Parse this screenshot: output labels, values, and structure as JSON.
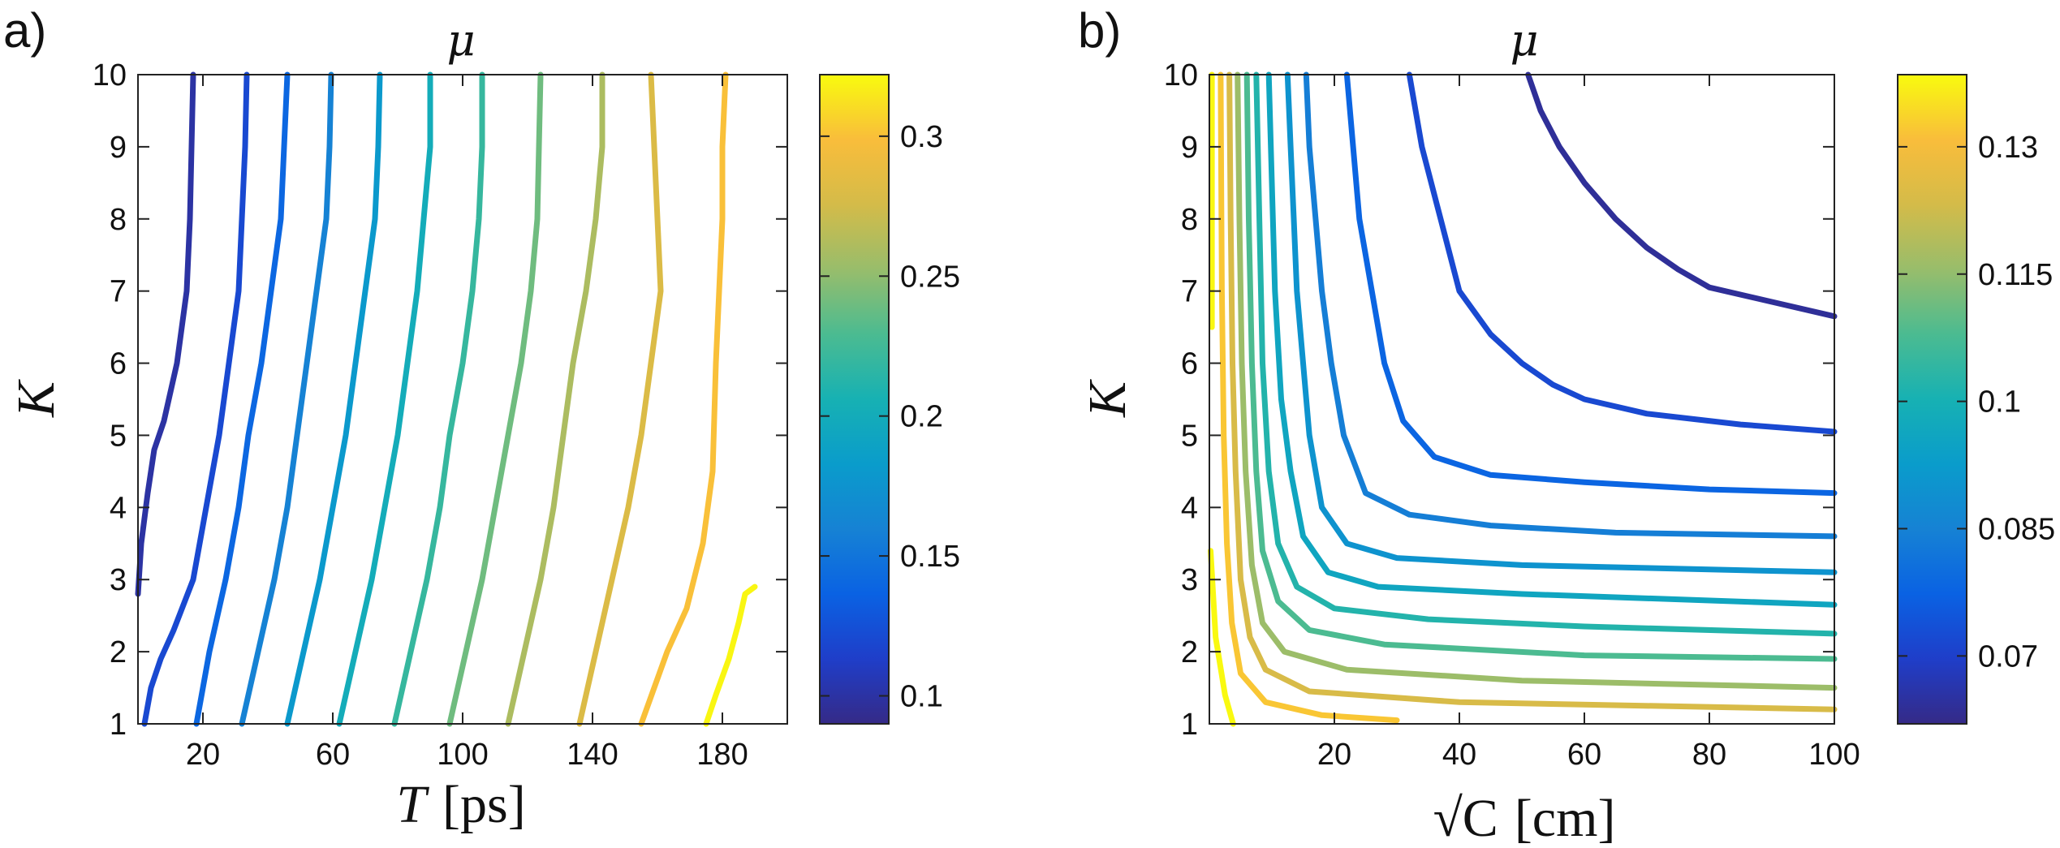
{
  "chart_data": [
    {
      "type": "contour",
      "panel_label": "a)",
      "title": "μ",
      "xlabel_var": "T",
      "xlabel_unit": "[ps]",
      "ylabel": "K",
      "xlim": [
        0,
        200
      ],
      "ylim": [
        1,
        10
      ],
      "xticks": [
        20,
        60,
        100,
        140,
        180
      ],
      "yticks": [
        1,
        2,
        3,
        4,
        5,
        6,
        7,
        8,
        9,
        10
      ],
      "colorbar": {
        "range": [
          0.09,
          0.322
        ],
        "ticks": [
          0.1,
          0.15,
          0.2,
          0.25,
          0.3
        ],
        "tick_labels": [
          "0.1",
          "0.15",
          "0.2",
          "0.25",
          "0.3"
        ]
      },
      "levels": [
        {
          "level": 0.1,
          "points": [
            [
              0,
              2.8
            ],
            [
              1,
              3.5
            ],
            [
              3,
              4.2
            ],
            [
              5,
              4.8
            ],
            [
              8,
              5.2
            ],
            [
              12,
              6.0
            ],
            [
              15,
              7.0
            ],
            [
              16,
              8.0
            ],
            [
              16.5,
              9.0
            ],
            [
              17,
              10.0
            ]
          ]
        },
        {
          "level": 0.12,
          "points": [
            [
              2,
              1.0
            ],
            [
              4,
              1.5
            ],
            [
              7,
              1.9
            ],
            [
              11,
              2.3
            ],
            [
              17,
              3.0
            ],
            [
              21,
              4.0
            ],
            [
              25,
              5.0
            ],
            [
              28,
              6.0
            ],
            [
              31,
              7.0
            ],
            [
              32,
              8.0
            ],
            [
              33,
              9.0
            ],
            [
              33.5,
              10.0
            ]
          ]
        },
        {
          "level": 0.14,
          "points": [
            [
              18,
              1.0
            ],
            [
              22,
              2.0
            ],
            [
              27,
              3.0
            ],
            [
              31,
              4.0
            ],
            [
              34,
              5.0
            ],
            [
              38,
              6.0
            ],
            [
              41,
              7.0
            ],
            [
              44,
              8.0
            ],
            [
              45,
              9.0
            ],
            [
              46,
              10.0
            ]
          ]
        },
        {
          "level": 0.16,
          "points": [
            [
              32,
              1.0
            ],
            [
              37,
              2.0
            ],
            [
              42,
              3.0
            ],
            [
              46,
              4.0
            ],
            [
              49,
              5.0
            ],
            [
              52,
              6.0
            ],
            [
              55,
              7.0
            ],
            [
              58,
              8.0
            ],
            [
              59,
              9.0
            ],
            [
              59.5,
              10.0
            ]
          ]
        },
        {
          "level": 0.18,
          "points": [
            [
              46,
              1.0
            ],
            [
              51,
              2.0
            ],
            [
              56,
              3.0
            ],
            [
              60,
              4.0
            ],
            [
              64,
              5.0
            ],
            [
              67,
              6.0
            ],
            [
              70,
              7.0
            ],
            [
              73,
              8.0
            ],
            [
              74,
              9.0
            ],
            [
              74.5,
              10.0
            ]
          ]
        },
        {
          "level": 0.2,
          "points": [
            [
              62,
              1.0
            ],
            [
              67,
              2.0
            ],
            [
              72,
              3.0
            ],
            [
              76,
              4.0
            ],
            [
              80,
              5.0
            ],
            [
              83,
              6.0
            ],
            [
              86,
              7.0
            ],
            [
              88,
              8.0
            ],
            [
              90,
              9.0
            ],
            [
              90,
              10.0
            ]
          ]
        },
        {
          "level": 0.22,
          "points": [
            [
              79,
              1.0
            ],
            [
              84,
              2.0
            ],
            [
              89,
              3.0
            ],
            [
              93,
              4.0
            ],
            [
              96,
              5.0
            ],
            [
              100,
              6.0
            ],
            [
              103,
              7.0
            ],
            [
              105,
              8.0
            ],
            [
              106,
              9.0
            ],
            [
              106,
              10.0
            ]
          ]
        },
        {
          "level": 0.24,
          "points": [
            [
              96,
              1.0
            ],
            [
              101,
              2.0
            ],
            [
              106,
              3.0
            ],
            [
              110,
              4.0
            ],
            [
              114,
              5.0
            ],
            [
              118,
              6.0
            ],
            [
              121,
              7.0
            ],
            [
              123,
              8.0
            ],
            [
              123.5,
              9.0
            ],
            [
              124,
              10.0
            ]
          ]
        },
        {
          "level": 0.26,
          "points": [
            [
              114,
              1.0
            ],
            [
              119,
              2.0
            ],
            [
              124,
              3.0
            ],
            [
              128,
              4.0
            ],
            [
              131,
              5.0
            ],
            [
              134,
              6.0
            ],
            [
              138,
              7.0
            ],
            [
              141,
              8.0
            ],
            [
              143,
              9.0
            ],
            [
              143,
              10.0
            ]
          ]
        },
        {
          "level": 0.28,
          "points": [
            [
              136,
              1.0
            ],
            [
              141,
              2.0
            ],
            [
              146,
              3.0
            ],
            [
              151,
              4.0
            ],
            [
              155,
              5.0
            ],
            [
              158,
              6.0
            ],
            [
              161,
              7.0
            ],
            [
              160,
              8.0
            ],
            [
              159,
              9.0
            ],
            [
              158,
              10.0
            ]
          ]
        },
        {
          "level": 0.3,
          "points": [
            [
              155,
              1.0
            ],
            [
              159,
              1.5
            ],
            [
              163,
              2.0
            ],
            [
              169,
              2.6
            ],
            [
              174,
              3.5
            ],
            [
              177,
              4.5
            ],
            [
              178,
              6.0
            ],
            [
              179,
              7.0
            ],
            [
              180,
              8.0
            ],
            [
              180,
              9.0
            ],
            [
              181,
              10.0
            ]
          ]
        },
        {
          "level": 0.32,
          "points": [
            [
              175,
              1.0
            ],
            [
              178,
              1.4
            ],
            [
              182,
              1.9
            ],
            [
              185,
              2.4
            ],
            [
              187,
              2.8
            ],
            [
              190,
              2.9
            ]
          ]
        }
      ]
    },
    {
      "type": "contour",
      "panel_label": "b)",
      "title": "μ",
      "xlabel_var": "√C",
      "xlabel_unit": "[cm]",
      "ylabel": "K",
      "xlim": [
        0,
        100
      ],
      "ylim": [
        1,
        10
      ],
      "xticks": [
        20,
        40,
        60,
        80,
        100
      ],
      "yticks": [
        1,
        2,
        3,
        4,
        5,
        6,
        7,
        8,
        9,
        10
      ],
      "colorbar": {
        "range": [
          0.062,
          0.1385
        ],
        "ticks": [
          0.07,
          0.085,
          0.1,
          0.115,
          0.13
        ],
        "tick_labels": [
          "0.07",
          "0.085",
          "0.1",
          "0.115",
          "0.13"
        ]
      },
      "levels": [
        {
          "level": 0.064,
          "points": [
            [
              51,
              10.0
            ],
            [
              53,
              9.5
            ],
            [
              56,
              9.0
            ],
            [
              60,
              8.5
            ],
            [
              65,
              8.0
            ],
            [
              70,
              7.6
            ],
            [
              75,
              7.3
            ],
            [
              80,
              7.05
            ],
            [
              90,
              6.85
            ],
            [
              100,
              6.65
            ]
          ]
        },
        {
          "level": 0.072,
          "points": [
            [
              32,
              10.0
            ],
            [
              34,
              9.0
            ],
            [
              37,
              8.0
            ],
            [
              40,
              7.0
            ],
            [
              45,
              6.4
            ],
            [
              50,
              6.0
            ],
            [
              55,
              5.7
            ],
            [
              60,
              5.5
            ],
            [
              70,
              5.3
            ],
            [
              85,
              5.15
            ],
            [
              100,
              5.05
            ]
          ]
        },
        {
          "level": 0.078,
          "points": [
            [
              22,
              10.0
            ],
            [
              23,
              9.0
            ],
            [
              24,
              8.0
            ],
            [
              26,
              7.0
            ],
            [
              28,
              6.0
            ],
            [
              31,
              5.2
            ],
            [
              36,
              4.7
            ],
            [
              45,
              4.45
            ],
            [
              60,
              4.35
            ],
            [
              80,
              4.25
            ],
            [
              100,
              4.2
            ]
          ]
        },
        {
          "level": 0.084,
          "points": [
            [
              15.5,
              10.0
            ],
            [
              16,
              9.0
            ],
            [
              17,
              8.0
            ],
            [
              18,
              7.0
            ],
            [
              19.5,
              6.0
            ],
            [
              21.5,
              5.0
            ],
            [
              25,
              4.2
            ],
            [
              32,
              3.9
            ],
            [
              45,
              3.75
            ],
            [
              65,
              3.65
            ],
            [
              100,
              3.6
            ]
          ]
        },
        {
          "level": 0.09,
          "points": [
            [
              12.5,
              10.0
            ],
            [
              13,
              9.0
            ],
            [
              13.5,
              8.0
            ],
            [
              14,
              7.0
            ],
            [
              15,
              6.0
            ],
            [
              16,
              5.0
            ],
            [
              18,
              4.0
            ],
            [
              22,
              3.5
            ],
            [
              30,
              3.3
            ],
            [
              50,
              3.2
            ],
            [
              100,
              3.1
            ]
          ]
        },
        {
          "level": 0.096,
          "points": [
            [
              9.5,
              10.0
            ],
            [
              10,
              8.5
            ],
            [
              10.5,
              7.0
            ],
            [
              11.5,
              5.5
            ],
            [
              13,
              4.5
            ],
            [
              15,
              3.6
            ],
            [
              19,
              3.1
            ],
            [
              27,
              2.9
            ],
            [
              50,
              2.8
            ],
            [
              100,
              2.65
            ]
          ]
        },
        {
          "level": 0.102,
          "points": [
            [
              7.5,
              10.0
            ],
            [
              8,
              8.0
            ],
            [
              8.5,
              6.0
            ],
            [
              9.5,
              4.5
            ],
            [
              11,
              3.5
            ],
            [
              14,
              2.9
            ],
            [
              20,
              2.6
            ],
            [
              35,
              2.45
            ],
            [
              60,
              2.35
            ],
            [
              100,
              2.25
            ]
          ]
        },
        {
          "level": 0.108,
          "points": [
            [
              6,
              10.0
            ],
            [
              6.3,
              8.0
            ],
            [
              6.8,
              6.0
            ],
            [
              7.5,
              4.5
            ],
            [
              8.5,
              3.4
            ],
            [
              11,
              2.7
            ],
            [
              16,
              2.3
            ],
            [
              28,
              2.1
            ],
            [
              60,
              1.95
            ],
            [
              100,
              1.9
            ]
          ]
        },
        {
          "level": 0.116,
          "points": [
            [
              4.5,
              10.0
            ],
            [
              4.8,
              8.0
            ],
            [
              5.2,
              6.0
            ],
            [
              5.8,
              4.5
            ],
            [
              6.8,
              3.2
            ],
            [
              8.5,
              2.4
            ],
            [
              12,
              2.0
            ],
            [
              22,
              1.75
            ],
            [
              50,
              1.6
            ],
            [
              100,
              1.5
            ]
          ]
        },
        {
          "level": 0.124,
          "points": [
            [
              3.2,
              10.0
            ],
            [
              3.4,
              8.0
            ],
            [
              3.7,
              6.0
            ],
            [
              4.2,
              4.5
            ],
            [
              5,
              3.0
            ],
            [
              6.5,
              2.2
            ],
            [
              9,
              1.75
            ],
            [
              16,
              1.45
            ],
            [
              40,
              1.3
            ],
            [
              100,
              1.2
            ]
          ]
        },
        {
          "level": 0.132,
          "points": [
            [
              1.8,
              10.0
            ],
            [
              1.9,
              8.5
            ],
            [
              2.0,
              7.0
            ],
            [
              2.3,
              5.0
            ],
            [
              2.8,
              3.5
            ],
            [
              3.6,
              2.4
            ],
            [
              5,
              1.7
            ],
            [
              9,
              1.3
            ],
            [
              18,
              1.12
            ],
            [
              30,
              1.05
            ]
          ]
        },
        {
          "level": 0.138,
          "points": [
            [
              0.4,
              10.0
            ],
            [
              0.4,
              8.0
            ],
            [
              0.4,
              6.5
            ]
          ]
        },
        {
          "level": 0.1382,
          "points": [
            [
              0.2,
              3.4
            ],
            [
              1,
              2.2
            ],
            [
              2.5,
              1.4
            ],
            [
              3.8,
              1.0
            ]
          ]
        }
      ]
    }
  ]
}
